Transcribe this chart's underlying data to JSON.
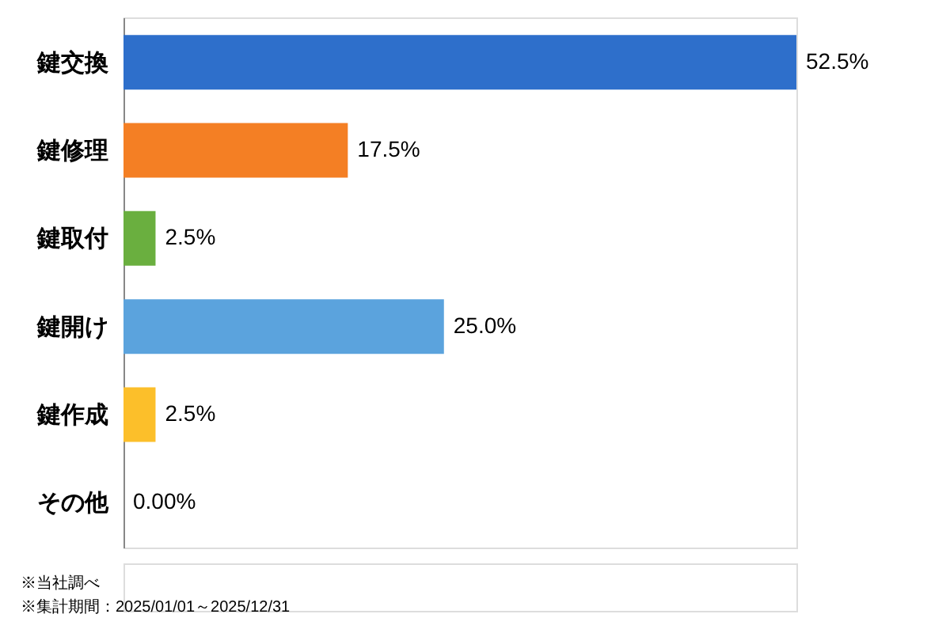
{
  "chart_data": {
    "type": "bar",
    "orientation": "horizontal",
    "categories": [
      "鍵交換",
      "鍵修理",
      "鍵取付",
      "鍵開け",
      "鍵作成",
      "その他"
    ],
    "values": [
      52.5,
      17.5,
      2.5,
      25.0,
      2.5,
      0.0
    ],
    "colors": [
      "#2e6fcb",
      "#f47f24",
      "#6aaf3f",
      "#5ba3dd",
      "#fcbf2a",
      "#9e9e9e"
    ],
    "value_labels": [
      "52.5%",
      "17.5%",
      "2.5%",
      "25.0%",
      "2.5%",
      "0.00%"
    ],
    "annotations": [
      "※当社調べ",
      "※集計期間：2025/01/01～2025/12/31"
    ]
  }
}
